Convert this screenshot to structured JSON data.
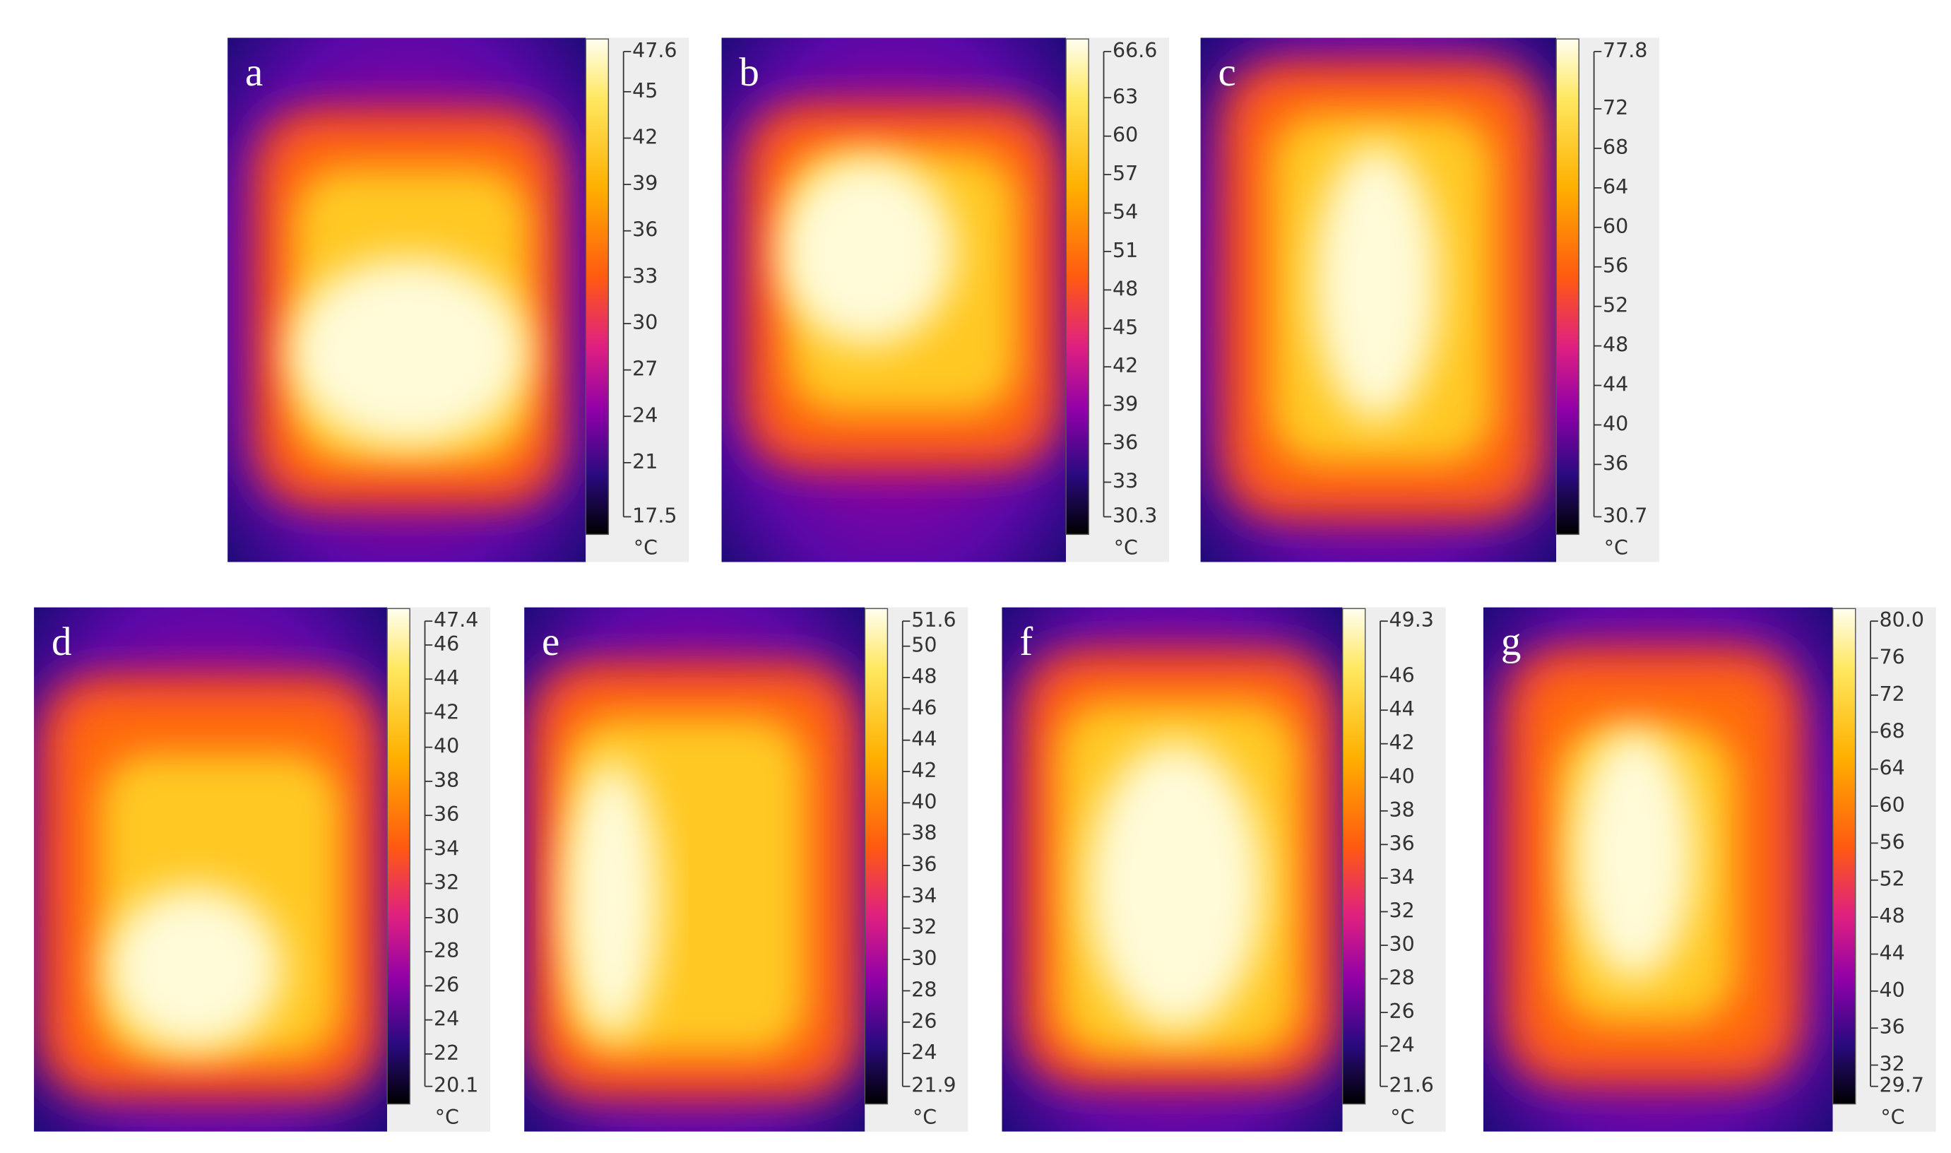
{
  "panels": [
    {
      "label": "a",
      "ticks": [
        "47.6",
        "45",
        "42",
        "39",
        "36",
        "33",
        "30",
        "27",
        "24",
        "21",
        "17.5"
      ],
      "unit": "°C"
    },
    {
      "label": "b",
      "ticks": [
        "66.6",
        "63",
        "60",
        "57",
        "54",
        "51",
        "48",
        "45",
        "42",
        "39",
        "36",
        "33",
        "30.3"
      ],
      "unit": "°C"
    },
    {
      "label": "c",
      "ticks": [
        "77.8",
        "72",
        "68",
        "64",
        "60",
        "56",
        "52",
        "48",
        "44",
        "40",
        "36",
        "30.7"
      ],
      "unit": "°C"
    },
    {
      "label": "d",
      "ticks": [
        "47.4",
        "46",
        "44",
        "42",
        "40",
        "38",
        "36",
        "34",
        "32",
        "30",
        "28",
        "26",
        "24",
        "22",
        "20.1"
      ],
      "unit": "°C"
    },
    {
      "label": "e",
      "ticks": [
        "51.6",
        "50",
        "48",
        "46",
        "44",
        "42",
        "40",
        "38",
        "36",
        "34",
        "32",
        "30",
        "28",
        "26",
        "24",
        "21.9"
      ],
      "unit": "°C"
    },
    {
      "label": "f",
      "ticks": [
        "49.3",
        "46",
        "44",
        "42",
        "40",
        "38",
        "36",
        "34",
        "32",
        "30",
        "28",
        "26",
        "24",
        "21.6"
      ],
      "unit": "°C"
    },
    {
      "label": "g",
      "ticks": [
        "80.0",
        "76",
        "72",
        "68",
        "64",
        "60",
        "56",
        "52",
        "48",
        "44",
        "40",
        "36",
        "32",
        "29.7"
      ],
      "unit": "°C"
    }
  ]
}
